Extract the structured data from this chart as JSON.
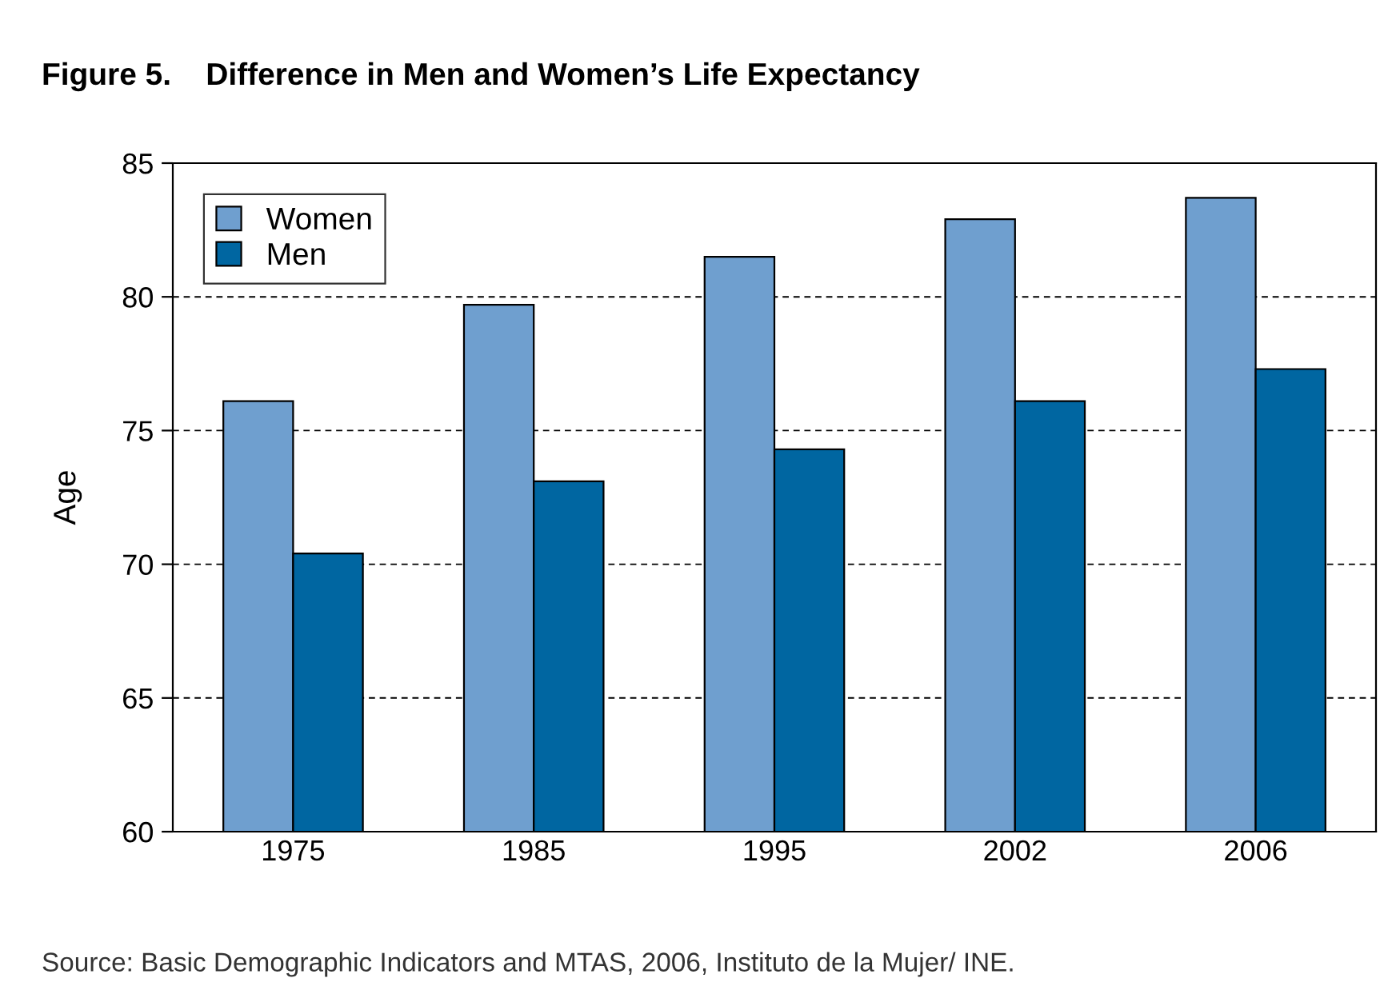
{
  "chart_data": {
    "type": "bar",
    "title": "Figure 5.    Difference in Men and Women’s Life Expectancy",
    "ylabel": "Age",
    "categories": [
      "1975",
      "1985",
      "1995",
      "2002",
      "2006"
    ],
    "series": [
      {
        "name": "Women",
        "color": "#6f9fcf",
        "values": [
          76.1,
          79.7,
          81.5,
          82.9,
          83.7
        ]
      },
      {
        "name": "Men",
        "color": "#0066a1",
        "values": [
          70.4,
          73.1,
          74.3,
          76.1,
          77.3
        ]
      }
    ],
    "ylim": [
      60,
      85
    ],
    "yticks": [
      60,
      65,
      70,
      75,
      80,
      85
    ],
    "grid": "y",
    "legend": "top left",
    "annotations": [
      "Source: Basic Demographic Indicators and MTAS, 2006, Instituto de la Mujer/ INE."
    ]
  }
}
